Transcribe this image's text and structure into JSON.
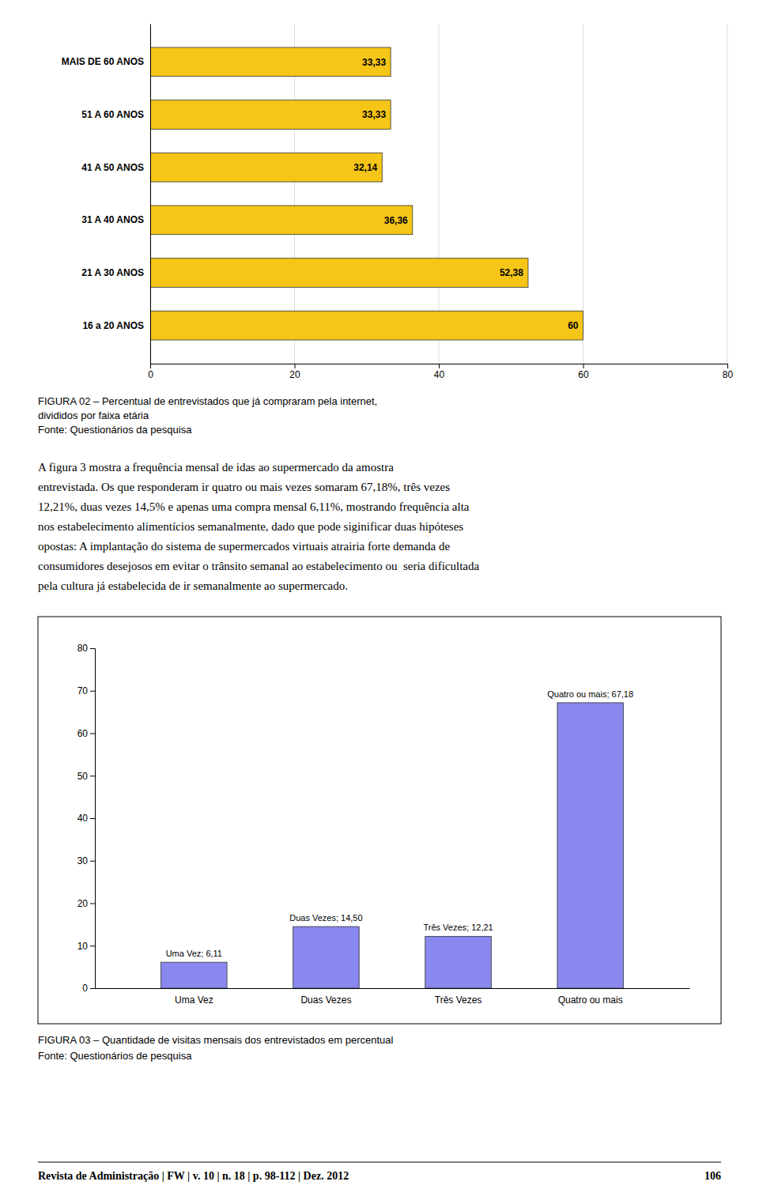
{
  "chart_data": [
    {
      "type": "bar",
      "orientation": "horizontal",
      "categories": [
        "MAIS DE 60 ANOS",
        "51 A 60 ANOS",
        "41 A 50 ANOS",
        "31 A 40 ANOS",
        "21 A 30 ANOS",
        "16 a 20 ANOS"
      ],
      "values": [
        33.33,
        33.33,
        32.14,
        36.36,
        52.38,
        60
      ],
      "value_labels": [
        "33,33",
        "33,33",
        "32,14",
        "36,36",
        "52,38",
        "60"
      ],
      "data_labels": true,
      "color": "#F5C518",
      "xlim": [
        0,
        80
      ],
      "xticks": [
        0,
        20,
        40,
        60,
        80
      ],
      "grid": true,
      "caption": [
        "FIGURA 02 – Percentual de entrevistados que já compraram pela internet,",
        "divididos por faixa etária",
        "Fonte: Questionários da pesquisa"
      ]
    },
    {
      "type": "bar",
      "categories": [
        "Uma Vez",
        "Duas Vezes",
        "Três Vezes",
        "Quatro ou mais"
      ],
      "values": [
        6.11,
        14.5,
        12.21,
        67.18
      ],
      "value_labels": [
        "Uma Vez; 6,11",
        "Duas Vezes; 14,50",
        "Três Vezes; 12,21",
        "Quatro ou mais; 67,18"
      ],
      "data_labels": true,
      "color": "#8888EE",
      "ylim": [
        0,
        80
      ],
      "yticks": [
        0,
        10,
        20,
        30,
        40,
        50,
        60,
        70,
        80
      ],
      "grid": false,
      "caption": [
        "FIGURA 03 – Quantidade de visitas mensais dos entrevistados em percentual",
        "Fonte: Questionários de pesquisa"
      ]
    }
  ],
  "page": {
    "paragraph": [
      "A figura 3 mostra a frequência mensal de idas ao supermercado da amostra",
      "entrevistada. Os que responderam ir quatro ou mais vezes somaram 67,18%, três vezes",
      "12,21%, duas vezes 14,5% e apenas uma compra mensal 6,11%, mostrando frequência alta",
      "nos estabelecimento alimentícios semanalmente, dado que pode siginificar duas hipóteses",
      "opostas: A implantação do sistema de supermercados virtuais atrairia forte demanda de",
      "consumidores desejosos em evitar o trânsito semanal ao estabelecimento ou  seria dificultada",
      "pela cultura já estabelecida de ir semanalmente ao supermercado."
    ],
    "footer_left": "Revista de Administração | FW | v. 10 | n. 18 | p. 98-112 | Dez. 2012",
    "footer_right": "106"
  }
}
